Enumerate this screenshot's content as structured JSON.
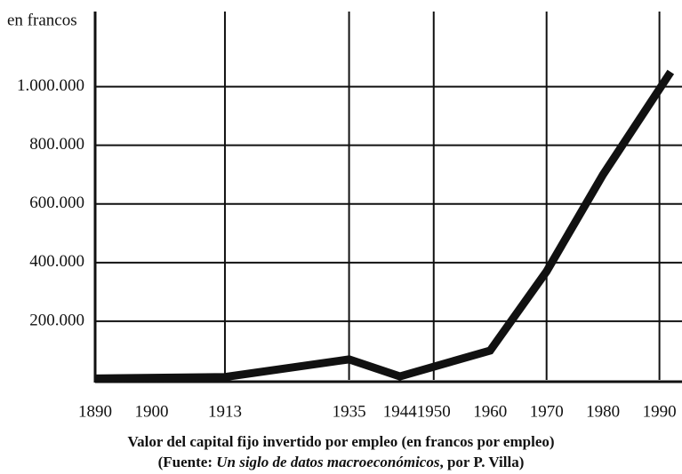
{
  "chart_data": {
    "type": "line",
    "y_unit_label": "en francos",
    "title": "Valor del capital fijo invertido por empleo (en francos por empleo)",
    "source": {
      "prefix": "(Fuente: ",
      "title": "Un siglo de datos macroeconómicos",
      "suffix": ", por P. Villa)"
    },
    "x": [
      1890,
      1913,
      1935,
      1944,
      1960,
      1970,
      1980,
      1992
    ],
    "series": [
      {
        "color": "#111111",
        "values": [
          5000,
          10000,
          70000,
          12000,
          100000,
          370000,
          700000,
          1050000
        ]
      }
    ],
    "xlim": [
      1890,
      1994
    ],
    "xticks": [
      1890,
      1900,
      1913,
      1935,
      1944,
      1950,
      1960,
      1970,
      1980,
      1990
    ],
    "xgrid": [
      1913,
      1935,
      1950,
      1970,
      1990
    ],
    "ylim": [
      0,
      1250000
    ],
    "yticks": [
      {
        "value": 200000,
        "label": "200.000"
      },
      {
        "value": 400000,
        "label": "400.000"
      },
      {
        "value": 600000,
        "label": "600.000"
      },
      {
        "value": 800000,
        "label": "800.000"
      },
      {
        "value": 1000000,
        "label": "1.000.000"
      }
    ],
    "grid": true
  }
}
